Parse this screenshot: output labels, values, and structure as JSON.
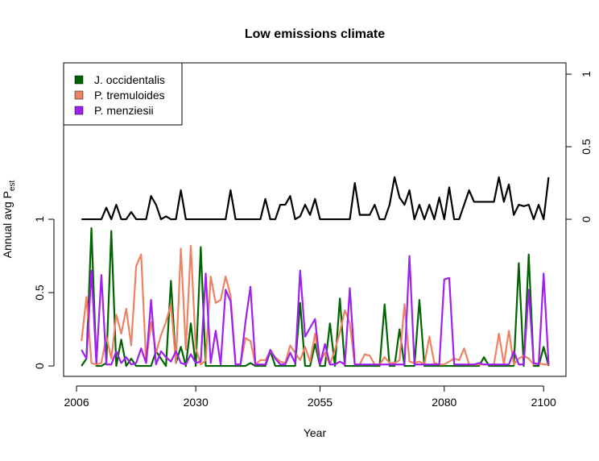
{
  "chart_data": {
    "type": "line",
    "title": "Low emissions climate",
    "xlabel": "Year",
    "ylabel": "Annual avg P",
    "ylabel_sub": "est",
    "x": [
      2007,
      2008,
      2009,
      2010,
      2011,
      2012,
      2013,
      2014,
      2015,
      2016,
      2017,
      2018,
      2019,
      2020,
      2021,
      2022,
      2023,
      2024,
      2025,
      2026,
      2027,
      2028,
      2029,
      2030,
      2031,
      2032,
      2033,
      2034,
      2035,
      2036,
      2037,
      2038,
      2039,
      2040,
      2041,
      2042,
      2043,
      2044,
      2045,
      2046,
      2047,
      2048,
      2049,
      2050,
      2051,
      2052,
      2053,
      2054,
      2055,
      2056,
      2057,
      2058,
      2059,
      2060,
      2061,
      2062,
      2063,
      2064,
      2065,
      2066,
      2067,
      2068,
      2069,
      2070,
      2071,
      2072,
      2073,
      2074,
      2075,
      2076,
      2077,
      2078,
      2079,
      2080,
      2081,
      2082,
      2083,
      2084,
      2085,
      2086,
      2087,
      2088,
      2089,
      2090,
      2091,
      2092,
      2093,
      2094,
      2095,
      2096,
      2097,
      2098,
      2099,
      2100,
      2101
    ],
    "series": [
      {
        "name": "J. occidentalis",
        "color": "#006400",
        "values": [
          0,
          0.05,
          0.94,
          0,
          0,
          0.02,
          0.92,
          0,
          0.18,
          0,
          0.05,
          0,
          0,
          0,
          0,
          0.1,
          0.05,
          0,
          0.58,
          0.02,
          0.13,
          0,
          0.29,
          0,
          0.81,
          0,
          0,
          0,
          0,
          0,
          0,
          0,
          0,
          0,
          0.02,
          0,
          0,
          0,
          0.1,
          0,
          0,
          0,
          0,
          0,
          0.43,
          0,
          0,
          0.15,
          0,
          0,
          0.29,
          0,
          0.46,
          0,
          0,
          0,
          0,
          0,
          0,
          0,
          0,
          0.42,
          0,
          0,
          0.25,
          0,
          0,
          0,
          0.45,
          0,
          0,
          0,
          0,
          0,
          0,
          0,
          0,
          0,
          0,
          0,
          0,
          0.06,
          0,
          0,
          0,
          0,
          0,
          0,
          0.7,
          0,
          0.76,
          0,
          0,
          0.13,
          0
        ]
      },
      {
        "name": "P. tremuloides",
        "color": "#ee8262",
        "values": [
          0.17,
          0.47,
          0.02,
          0.01,
          0.02,
          0.2,
          0.05,
          0.35,
          0.22,
          0.39,
          0.14,
          0.68,
          0.76,
          0.02,
          0.3,
          0.09,
          0.21,
          0.3,
          0.42,
          0.02,
          0.8,
          0.11,
          0.82,
          0.12,
          0.01,
          0.04,
          0.61,
          0.43,
          0.45,
          0.61,
          0.48,
          0.01,
          0.01,
          0.19,
          0.17,
          0.01,
          0.04,
          0.04,
          0.1,
          0.06,
          0.03,
          0.02,
          0.14,
          0.09,
          0.04,
          0.13,
          0.03,
          0.22,
          0.02,
          0.09,
          0.01,
          0.11,
          0.23,
          0.38,
          0.29,
          0.01,
          0.01,
          0.08,
          0.07,
          0.01,
          0.01,
          0.06,
          0.02,
          0.02,
          0.04,
          0.42,
          0.03,
          0.02,
          0.03,
          0.01,
          0.2,
          0.02,
          0.01,
          0.01,
          0.03,
          0.05,
          0.04,
          0.12,
          0.01,
          0.01,
          0.01,
          0.01,
          0.01,
          0.01,
          0.22,
          0.01,
          0.24,
          0.01,
          0.05,
          0.07,
          0.05,
          0.01,
          0.02,
          0.01,
          0.01
        ]
      },
      {
        "name": "P. menziesii",
        "color": "#a020f0",
        "values": [
          0.11,
          0.05,
          0.65,
          0.02,
          0.62,
          0.01,
          0.01,
          0.1,
          0.02,
          0.06,
          0.01,
          0.02,
          0.12,
          0.02,
          0.45,
          0.01,
          0.1,
          0.06,
          0.03,
          0.1,
          0.02,
          0.01,
          0.08,
          0.02,
          0.03,
          0.63,
          0.02,
          0.24,
          0.01,
          0.52,
          0.44,
          0.01,
          0.01,
          0.3,
          0.54,
          0.01,
          0.01,
          0.01,
          0.11,
          0.05,
          0.01,
          0.01,
          0.09,
          0.02,
          0.65,
          0.2,
          0.26,
          0.32,
          0.01,
          0.15,
          0.01,
          0.01,
          0.03,
          0.01,
          0.53,
          0.01,
          0.01,
          0.01,
          0.01,
          0.01,
          0.01,
          0.01,
          0.01,
          0.01,
          0.01,
          0.01,
          0.75,
          0.01,
          0.01,
          0.01,
          0.01,
          0.01,
          0.01,
          0.59,
          0.6,
          0.01,
          0.01,
          0.01,
          0.01,
          0.01,
          0.02,
          0.01,
          0.01,
          0.01,
          0.01,
          0.01,
          0.01,
          0.1,
          0.01,
          0.01,
          0.52,
          0.02,
          0.01,
          0.63,
          0.01
        ]
      },
      {
        "color": "#000000",
        "axis": "y2",
        "values": [
          0,
          0,
          0,
          0,
          0,
          0.08,
          0,
          0.1,
          0,
          0,
          0.05,
          0,
          0,
          0,
          0.16,
          0.1,
          0,
          0.02,
          0,
          0,
          0.2,
          0,
          0,
          0,
          0,
          0,
          0,
          0,
          0,
          0,
          0.2,
          0,
          0,
          0,
          0,
          0,
          0,
          0.14,
          0,
          0,
          0.1,
          0.1,
          0.16,
          0,
          0.02,
          0.1,
          0.03,
          0.14,
          0,
          0,
          0,
          0,
          0,
          0,
          0,
          0.25,
          0.03,
          0.03,
          0.03,
          0.1,
          0,
          0,
          0.1,
          0.29,
          0.15,
          0.1,
          0.2,
          0,
          0.1,
          0,
          0.1,
          0,
          0.15,
          0,
          0.22,
          0,
          0,
          0.1,
          0.2,
          0.12,
          0.12,
          0.12,
          0.12,
          0.12,
          0.29,
          0.12,
          0.24,
          0.03,
          0.1,
          0.09,
          0.1,
          0,
          0.1,
          0,
          0.29
        ]
      }
    ],
    "xlim": [
      2003.4,
      2104.5
    ],
    "xticks": [
      2006,
      2030,
      2055,
      2080,
      2100
    ],
    "ylim": [
      -0.071,
      2.066
    ],
    "yticks": [
      0,
      0.5,
      1
    ],
    "y2lim": [
      -1.083,
      1.078
    ],
    "y2ticks": [
      0,
      0.5,
      1
    ],
    "legend": "top-left"
  }
}
